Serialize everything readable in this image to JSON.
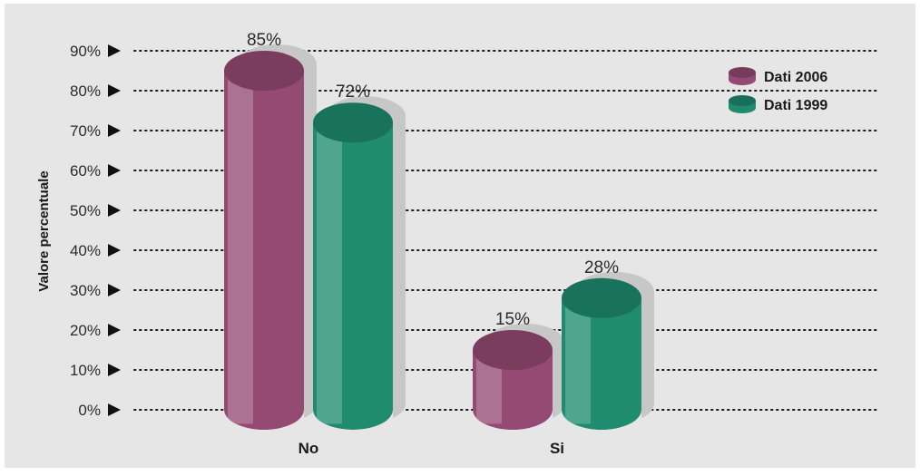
{
  "chart_data": {
    "type": "bar",
    "title": "",
    "xlabel": "",
    "ylabel": "Valore percentuale",
    "categories": [
      "No",
      "Si"
    ],
    "series": [
      {
        "name": "Dati 2006",
        "values": [
          85,
          15
        ],
        "color": "#954a73"
      },
      {
        "name": "Dati 1999",
        "values": [
          72,
          28
        ],
        "color": "#1f8c70"
      }
    ],
    "value_labels": [
      [
        "85%",
        "15%"
      ],
      [
        "72%",
        "28%"
      ]
    ],
    "yticks": [
      {
        "value": 0,
        "label": "0%"
      },
      {
        "value": 10,
        "label": "10%"
      },
      {
        "value": 20,
        "label": "20%"
      },
      {
        "value": 30,
        "label": "30%"
      },
      {
        "value": 40,
        "label": "40%"
      },
      {
        "value": 50,
        "label": "50%"
      },
      {
        "value": 60,
        "label": "60%"
      },
      {
        "value": 70,
        "label": "70%"
      },
      {
        "value": 80,
        "label": "80%"
      },
      {
        "value": 90,
        "label": "90%"
      }
    ],
    "ylim": [
      0,
      90
    ],
    "grid": true,
    "legend_position": "top-right",
    "background": "#e6e6e6"
  }
}
